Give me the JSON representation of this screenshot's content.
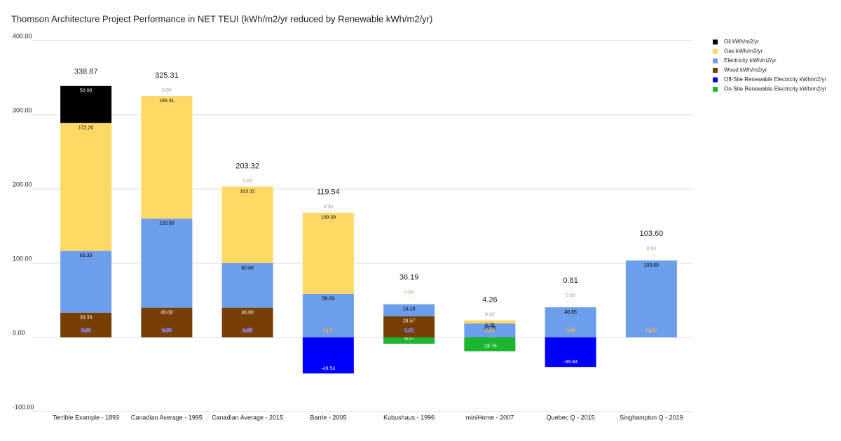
{
  "chart_data": {
    "type": "stacked-bar",
    "title": "Thomson Architecture Project Performance in NET TEUI (kWh/m2/yr reduced by Renewable kWh/m2/yr)",
    "categories": [
      "Terrible Example - 1893",
      "Canadian Average - 1995",
      "Canadian Average - 2015",
      "Barrie - 2005",
      "Kubushaus - 1996",
      "miniHome - 2007",
      "Quebec Q - 2015",
      "Singhampton Q - 2019"
    ],
    "series": [
      {
        "name": "Oil kWh/m2/yr",
        "color": "#000000",
        "values": [
          50,
          0,
          0,
          0,
          0,
          0,
          0,
          0
        ],
        "value_labels": [
          "50.00",
          "0.00",
          "0.00",
          "0.00",
          "0.00",
          "0.00",
          "0.00",
          "0.00"
        ]
      },
      {
        "name": "Gas kWh/m2/yr",
        "color": "#ffd966",
        "values": [
          172.2,
          165.31,
          103.32,
          109.39,
          0,
          4.26,
          0,
          0
        ],
        "value_labels": [
          "172.20",
          "165.31",
          "103.32",
          "109.39",
          "0.00",
          "4.26",
          "0.00",
          "0.00"
        ]
      },
      {
        "name": "Electricity kWh/m2/yr",
        "color": "#6d9eeb",
        "values": [
          83.33,
          120,
          60,
          58.69,
          16.19,
          18.75,
          40.65,
          103.6
        ],
        "value_labels": [
          "83.33",
          "120.00",
          "60.00",
          "58.69",
          "16.19",
          "18.75",
          "40.65",
          "103.60"
        ]
      },
      {
        "name": "Wood kWh/m2/yr",
        "color": "#783f04",
        "values": [
          33.33,
          40,
          40,
          0,
          28.57,
          0,
          0,
          0
        ],
        "value_labels": [
          "33.33",
          "40.00",
          "40.00",
          "0.00",
          "28.57",
          "0.00",
          "0.00",
          "0.00"
        ]
      },
      {
        "name": "Off-Site Renewable Electricity kWh/m2/yr",
        "color": "#0000ff",
        "values": [
          0,
          0,
          0,
          -48.54,
          0,
          0,
          -39.84,
          0
        ],
        "value_labels": [
          "0.00",
          "0.00",
          "0.00",
          "-48.54",
          "0.00",
          "0.00",
          "-39.84",
          "0.00"
        ]
      },
      {
        "name": "On-Site Renewable Electricity kWh/m2/yr",
        "color": "#1bb52e",
        "values": [
          0,
          0,
          0,
          0,
          -8.57,
          -18.75,
          0,
          0
        ],
        "value_labels": [
          "0.00",
          "0.00",
          "0.00",
          "0.00",
          "-8.57",
          "-18.75",
          "0.00",
          "0.00"
        ]
      }
    ],
    "totals": [
      338.87,
      325.31,
      203.32,
      119.54,
      36.19,
      4.26,
      0.81,
      103.6
    ],
    "total_labels": [
      "338.87",
      "325.31",
      "203.32",
      "119.54",
      "36.19",
      "4.26",
      "0.81",
      "103.60"
    ],
    "ylim": [
      -100,
      400
    ],
    "yticks": [
      {
        "value": -100,
        "label": "-100.00"
      },
      {
        "value": 0,
        "label": "0.00"
      },
      {
        "value": 100,
        "label": "100.00"
      },
      {
        "value": 200,
        "label": "200.00"
      },
      {
        "value": 300,
        "label": "300.00"
      },
      {
        "value": 400,
        "label": "400.00"
      }
    ],
    "grid": true,
    "legend": "right"
  }
}
